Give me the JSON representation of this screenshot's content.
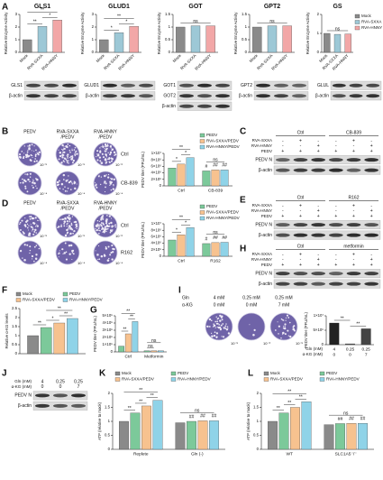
{
  "panel_labels": [
    "A",
    "B",
    "C",
    "D",
    "E",
    "F",
    "G",
    "H",
    "I",
    "J",
    "K",
    "L"
  ],
  "chart_data": [
    {
      "type": "bar",
      "title": "GLS1",
      "ylabel": "Relative Enzyme Activity",
      "categories": [
        "Mock",
        "RVA-SXXA",
        "RVA-HNNY"
      ],
      "values": [
        1,
        2.05,
        2.55
      ],
      "colors": [
        "#8a8a8a",
        "#9dc8d6",
        "#f2a7a7"
      ],
      "ylim": [
        0,
        3
      ],
      "yticks": [
        0,
        1,
        2,
        3
      ],
      "rotated_labels": true,
      "annotations": [
        "**",
        "*",
        "**"
      ]
    },
    {
      "type": "bar",
      "title": "GLUD1",
      "ylabel": "Relative Enzyme Activity",
      "categories": [
        "Mock",
        "RVA-SXXA",
        "RVA-HNNY"
      ],
      "values": [
        1,
        1.55,
        2.05
      ],
      "colors": [
        "#8a8a8a",
        "#9dc8d6",
        "#f2a7a7"
      ],
      "ylim": [
        0,
        3
      ],
      "yticks": [
        0,
        1,
        2,
        3
      ],
      "rotated_labels": true,
      "annotations": [
        "*",
        "*",
        "**"
      ]
    },
    {
      "type": "bar",
      "title": "GOT",
      "ylabel": "Relative Enzyme Activity",
      "categories": [
        "Mock",
        "RVA-SXXA",
        "RVA-HNNY"
      ],
      "values": [
        1,
        1.05,
        1.05
      ],
      "colors": [
        "#8a8a8a",
        "#9dc8d6",
        "#f2a7a7"
      ],
      "ylim": [
        0,
        1.5
      ],
      "yticks": [
        0,
        0.5,
        1,
        1.5
      ],
      "rotated_labels": true,
      "annotations": [
        "ns"
      ]
    },
    {
      "type": "bar",
      "title": "GPT2",
      "ylabel": "Relative Enzyme Activity",
      "categories": [
        "Mock",
        "RVA-SXXA",
        "RVA-HNNY"
      ],
      "values": [
        1,
        1.05,
        1.05
      ],
      "colors": [
        "#8a8a8a",
        "#9dc8d6",
        "#f2a7a7"
      ],
      "ylim": [
        0,
        1.5
      ],
      "yticks": [
        0,
        0.5,
        1,
        1.5
      ],
      "rotated_labels": true,
      "annotations": [
        "ns"
      ]
    },
    {
      "type": "bar",
      "title": "GS",
      "ylabel": "Relative Enzyme Activity",
      "categories": [
        "Mock",
        "RVA-SXXA",
        "RVA-HNNY"
      ],
      "values": [
        1,
        0.95,
        0.97
      ],
      "colors": [
        "#8a8a8a",
        "#9dc8d6",
        "#f2a7a7"
      ],
      "ylim": [
        0,
        2
      ],
      "yticks": [
        0,
        1,
        2
      ],
      "rotated_labels": true,
      "legend": true,
      "annotations": [
        "ns"
      ]
    },
    {
      "type": "bar",
      "ylabel": "PEDV titer (PFU/mL)",
      "categories": [
        "Ctrl",
        "CB-839"
      ],
      "series": [
        {
          "name": "PEDV",
          "color": "#7cc99a",
          "values": [
            5500000,
            4600000
          ]
        },
        {
          "name": "RVA-SXXA/PEDV",
          "color": "#f7c28f",
          "values": [
            6700000,
            4900000
          ]
        },
        {
          "name": "RVA-HNNY/PEDV",
          "color": "#8fd3e8",
          "values": [
            8700000,
            4900000
          ]
        }
      ],
      "ylim": [
        0,
        10000000
      ],
      "yticks": [
        0,
        {
          "value": 2000000,
          "label": "2×10⁶"
        },
        {
          "value": 4000000,
          "label": "4×10⁶"
        },
        {
          "value": 6000000,
          "label": "6×10⁶"
        },
        {
          "value": 8000000,
          "label": "8×10⁶"
        },
        {
          "value": 10000000,
          "label": "1×10⁷"
        }
      ],
      "legend": true,
      "annotations": [
        "*",
        "*",
        "**",
        "ns",
        "#",
        "##",
        "##"
      ]
    },
    {
      "type": "bar",
      "ylabel": "PEDV titer (PFU/mL)",
      "categories": [
        "Ctrl",
        "R162"
      ],
      "series": [
        {
          "name": "PEDV",
          "color": "#7cc99a",
          "values": [
            5000000,
            3900000
          ]
        },
        {
          "name": "RVA-SXXA/PEDV",
          "color": "#f7c28f",
          "values": [
            6600000,
            4200000
          ]
        },
        {
          "name": "RVA-HNNY/PEDV",
          "color": "#8fd3e8",
          "values": [
            8800000,
            4300000
          ]
        }
      ],
      "ylim": [
        0,
        10000000
      ],
      "yticks": [
        0,
        {
          "value": 2000000,
          "label": "2×10⁶"
        },
        {
          "value": 4000000,
          "label": "4×10⁶"
        },
        {
          "value": 6000000,
          "label": "6×10⁶"
        },
        {
          "value": 8000000,
          "label": "8×10⁶"
        },
        {
          "value": 10000000,
          "label": "1×10⁷"
        }
      ],
      "legend": true,
      "annotations": [
        "*",
        "*",
        "**",
        "ns",
        "#",
        "##",
        "##"
      ]
    },
    {
      "type": "bar",
      "ylabel": "Relative α-KG levels",
      "categories": [
        null
      ],
      "series": [
        {
          "name": "Mock",
          "color": "#8a8a8a",
          "values": [
            1
          ]
        },
        {
          "name": "PEDV",
          "color": "#7cc99a",
          "values": [
            1.45
          ]
        },
        {
          "name": "RVA-SXXA/PEDV",
          "color": "#f7c28f",
          "values": [
            1.7
          ]
        },
        {
          "name": "RVA-HNNY/PEDV",
          "color": "#8fd3e8",
          "values": [
            1.95
          ]
        }
      ],
      "ylim": [
        0,
        2.5
      ],
      "yticks": [
        0,
        0.5,
        1,
        1.5,
        2,
        2.5
      ],
      "legend": true,
      "annotations": [
        "**",
        "*",
        "**",
        "**"
      ]
    },
    {
      "type": "bar",
      "ylabel": "PEDV titer (PFU/mL)",
      "categories": [
        "Ctrl",
        "Metformin"
      ],
      "series": [
        {
          "name": "PEDV",
          "color": "#7cc99a",
          "values": [
            80000,
            15000
          ]
        },
        {
          "name": "RVA-SXXA/PEDV",
          "color": "#f7c28f",
          "values": [
            250000,
            15000
          ]
        },
        {
          "name": "RVA-HNNY/PEDV",
          "color": "#8fd3e8",
          "values": [
            420000,
            15000
          ]
        }
      ],
      "ylim": [
        0,
        500000
      ],
      "yticks": [
        0,
        {
          "value": 100000,
          "label": "1×10⁵"
        },
        {
          "value": 200000,
          "label": "2×10⁵"
        },
        {
          "value": 300000,
          "label": "3×10⁵"
        },
        {
          "value": 400000,
          "label": "4×10⁵"
        },
        {
          "value": 500000,
          "label": "5×10⁵"
        }
      ],
      "annotations": [
        "**",
        "**",
        "**",
        "ns",
        "ns"
      ]
    },
    {
      "type": "bar",
      "ylabel": "PEDV titer (PFU/mL)",
      "categories": [
        "4",
        "0.25",
        "0.25"
      ],
      "categories2": [
        "0",
        "0",
        "7"
      ],
      "category_names": [
        "Gln (mM)",
        "α-KG (mM)"
      ],
      "values": [
        7500000,
        300000,
        5500000
      ],
      "colors": [
        "#222222",
        "#555555",
        "#444444"
      ],
      "ylim": [
        0,
        10000000
      ],
      "yticks": [
        0,
        {
          "value": 5000000,
          "label": "5×10⁶"
        },
        {
          "value": 10000000,
          "label": "1×10⁷"
        }
      ],
      "annotations": [
        "**",
        "**"
      ]
    },
    {
      "type": "bar",
      "ylabel": "ATP (relative to mock)",
      "categories": [
        "Replete",
        "Gln (-)"
      ],
      "series": [
        {
          "name": "Mock",
          "color": "#8a8a8a",
          "values": [
            1,
            0.95
          ]
        },
        {
          "name": "PEDV",
          "color": "#7cc99a",
          "values": [
            1.3,
            1
          ]
        },
        {
          "name": "RVA-SXXA/PEDV",
          "color": "#f7c28f",
          "values": [
            1.55,
            1.02
          ]
        },
        {
          "name": "RVA-HNNY/PEDV",
          "color": "#8fd3e8",
          "values": [
            1.75,
            1.02
          ]
        }
      ],
      "ylim": [
        0,
        2
      ],
      "yticks": [
        0,
        0.5,
        1,
        1.5,
        2
      ],
      "legend": true,
      "annotations": [
        "**",
        "**",
        "**",
        "**",
        "ns",
        "##",
        "##",
        "##"
      ]
    },
    {
      "type": "bar",
      "ylabel": "ATP (relative to mock)",
      "categories": [
        "WT",
        "SLC1A5⁻/⁻"
      ],
      "series": [
        {
          "name": "Mock",
          "color": "#8a8a8a",
          "values": [
            1,
            0.88
          ]
        },
        {
          "name": "PEDV",
          "color": "#7cc99a",
          "values": [
            1.3,
            0.92
          ]
        },
        {
          "name": "RVA-SXXA/PEDV",
          "color": "#f7c28f",
          "values": [
            1.5,
            0.93
          ]
        },
        {
          "name": "RVA-HNNY/PEDV",
          "color": "#8fd3e8",
          "values": [
            1.7,
            0.93
          ]
        }
      ],
      "ylim": [
        0,
        2
      ],
      "yticks": [
        0,
        0.5,
        1,
        1.5,
        2
      ],
      "legend": true,
      "annotations": [
        "**",
        "**",
        "**",
        "**",
        "ns",
        "##",
        "##",
        "##"
      ]
    }
  ],
  "blots": [
    {
      "bands": [
        "GLS1",
        "β-actin"
      ]
    },
    {
      "bands": [
        "GLUD1",
        "β-actin"
      ]
    },
    {
      "bands": [
        "GOT1",
        "GOT2",
        "β-actin"
      ]
    },
    {
      "bands": [
        "GPT2",
        "β-actin"
      ]
    },
    {
      "bands": [
        "GLUL",
        "β-actin"
      ]
    },
    {
      "conditions": [
        "Ctrl",
        "CB-839"
      ],
      "treatments": [
        {
          "name": "RVA-SXXA",
          "signs": [
            "-",
            "+",
            "-",
            "-",
            "+",
            "-"
          ]
        },
        {
          "name": "RVA-HNNY",
          "signs": [
            "-",
            "-",
            "+",
            "-",
            "-",
            "+"
          ]
        },
        {
          "name": "PEDV",
          "signs": [
            "+",
            "+",
            "+",
            "+",
            "+",
            "+"
          ]
        }
      ],
      "bands": [
        "PEDV N",
        "β-actin"
      ]
    },
    {
      "conditions": [
        "Ctrl",
        "R162"
      ],
      "treatments": [
        {
          "name": "RVA-SXXA",
          "signs": [
            "-",
            "+",
            "-",
            "-",
            "+",
            "-"
          ]
        },
        {
          "name": "RVA-HNNY",
          "signs": [
            "-",
            "-",
            "+",
            "-",
            "-",
            "+"
          ]
        },
        {
          "name": "PEDV",
          "signs": [
            "+",
            "+",
            "+",
            "+",
            "+",
            "+"
          ]
        }
      ],
      "bands": [
        "PEDV N",
        "β-actin"
      ]
    },
    {
      "conditions": [
        "Ctrl",
        "metformin"
      ],
      "treatments": [
        {
          "name": "RVA-SXXA",
          "signs": [
            "-",
            "+",
            "-",
            "-",
            "+",
            "-"
          ]
        },
        {
          "name": "RVA-HNNY",
          "signs": [
            "-",
            "-",
            "+",
            "-",
            "-",
            "+"
          ]
        },
        {
          "name": "PEDV",
          "signs": [
            "+",
            "+",
            "+",
            "+",
            "+",
            "+"
          ]
        }
      ],
      "bands": [
        "PEDV N",
        "β-actin"
      ]
    },
    {
      "treatments": [
        {
          "name": "Gln (mM)",
          "signs": [
            "4",
            "0.25",
            "0.25"
          ]
        },
        {
          "name": "α-KG (mM)",
          "signs": [
            "0",
            "0",
            "7"
          ]
        }
      ],
      "bands": [
        "PEDV N",
        "β-actin"
      ]
    }
  ],
  "plaques": [
    {
      "columns": [
        [
          "PEDV"
        ],
        [
          "RVA-SXXA",
          "/PEDV"
        ],
        [
          "RVA-HNNY",
          "/PEDV"
        ]
      ],
      "rows": [
        "Ctrl",
        "CB-839"
      ],
      "dilutions": [
        [
          "10⁻⁵",
          "10⁻⁵",
          "10⁻⁶"
        ],
        [
          "10⁻⁴",
          "10⁻⁴",
          "10⁻⁴"
        ]
      ]
    },
    {
      "columns": [
        [
          "PEDV"
        ],
        [
          "RVA-SXXA",
          "/PEDV"
        ],
        [
          "RVA-HNNY",
          "/PEDV"
        ]
      ],
      "rows": [
        "Ctrl",
        "R162"
      ],
      "dilutions": [
        [
          "10⁻⁵",
          "10⁻⁵",
          "10⁻⁶"
        ],
        [
          "10⁻⁴",
          "10⁻⁴",
          "10⁻⁴"
        ]
      ]
    },
    {
      "header_rows": [
        {
          "name": "Gln",
          "labels": [
            "4 mM",
            "0.25 mM",
            "0.25 mM"
          ]
        },
        {
          "name": "α-KG",
          "labels": [
            "0 mM",
            "0 mM",
            "7 mM"
          ]
        }
      ],
      "dilutions": [
        [
          "10⁻⁵",
          "10⁻³",
          "10⁻⁵"
        ]
      ]
    }
  ]
}
